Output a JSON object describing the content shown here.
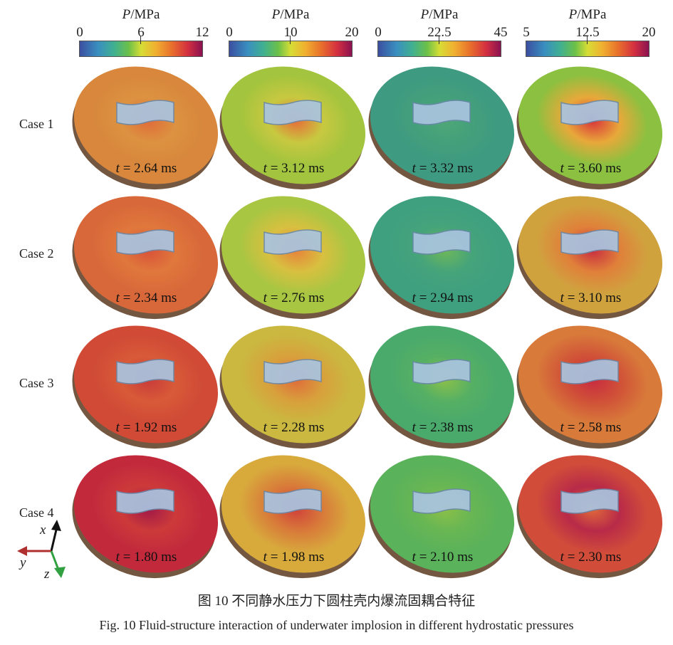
{
  "colorbars": [
    {
      "title_var": "P",
      "title_unit": "/MPa",
      "ticks": [
        "0",
        "6",
        "12"
      ]
    },
    {
      "title_var": "P",
      "title_unit": "/MPa",
      "ticks": [
        "0",
        "10",
        "20"
      ]
    },
    {
      "title_var": "P",
      "title_unit": "/MPa",
      "ticks": [
        "0",
        "22.5",
        "45"
      ]
    },
    {
      "title_var": "P",
      "title_unit": "/MPa",
      "ticks": [
        "5",
        "12.5",
        "20"
      ]
    }
  ],
  "rows": [
    {
      "label": "Case 1",
      "cells": [
        {
          "t_var": "t",
          "time": "= 2.64 ms",
          "base": "#d8873c",
          "ring": "#dc9240",
          "core": "#e06a3a"
        },
        {
          "t_var": "t",
          "time": "= 3.12 ms",
          "base": "#a3c43e",
          "ring": "#c8c840",
          "core": "#e86a38"
        },
        {
          "t_var": "t",
          "time": "= 3.32 ms",
          "base": "#3e9a80",
          "ring": "#44a07a",
          "core": "#50a878"
        },
        {
          "t_var": "t",
          "time": "= 3.60 ms",
          "base": "#8cc040",
          "ring": "#e8a83a",
          "core": "#d8303a"
        }
      ]
    },
    {
      "label": "Case 2",
      "cells": [
        {
          "t_var": "t",
          "time": "= 2.34 ms",
          "base": "#d8683a",
          "ring": "#e0783c",
          "core": "#d85038"
        },
        {
          "t_var": "t",
          "time": "= 2.76 ms",
          "base": "#a8c642",
          "ring": "#d8c040",
          "core": "#e8803a"
        },
        {
          "t_var": "t",
          "time": "= 2.94 ms",
          "base": "#3fa080",
          "ring": "#46a47a",
          "core": "#70b858"
        },
        {
          "t_var": "t",
          "time": "= 3.10 ms",
          "base": "#d0a23e",
          "ring": "#e0803a",
          "core": "#c82a40"
        }
      ]
    },
    {
      "label": "Case 3",
      "cells": [
        {
          "t_var": "t",
          "time": "= 1.92 ms",
          "base": "#d04a36",
          "ring": "#d85a38",
          "core": "#c83a3a"
        },
        {
          "t_var": "t",
          "time": "= 2.28 ms",
          "base": "#cab840",
          "ring": "#d8a03c",
          "core": "#e06a3a"
        },
        {
          "t_var": "t",
          "time": "= 2.38 ms",
          "base": "#4aaa6c",
          "ring": "#56b064",
          "core": "#8cc048"
        },
        {
          "t_var": "t",
          "time": "= 2.58 ms",
          "base": "#d87a3a",
          "ring": "#d05038",
          "core": "#c82a40"
        }
      ]
    },
    {
      "label": "Case 4",
      "cells": [
        {
          "t_var": "t",
          "time": "= 1.80 ms",
          "base": "#c22a3c",
          "ring": "#cc3a3a",
          "core": "#a01848"
        },
        {
          "t_var": "t",
          "time": "= 1.98 ms",
          "base": "#d8aa3c",
          "ring": "#d87a3a",
          "core": "#d0403a"
        },
        {
          "t_var": "t",
          "time": "= 2.10 ms",
          "base": "#5ab25a",
          "ring": "#68b654",
          "core": "#8cc048"
        },
        {
          "t_var": "t",
          "time": "= 2.30 ms",
          "base": "#d24c3a",
          "ring": "#b82a48",
          "core": "#e06a3a"
        }
      ]
    }
  ],
  "axes": {
    "x": "x",
    "y": "y",
    "z": "z",
    "x_color": "#111111",
    "y_color": "#b03030",
    "z_color": "#30a040"
  },
  "caption": {
    "zh": "图 10    不同静水压力下圆柱壳内爆流固耦合特征",
    "en": "Fig. 10    Fluid-structure interaction of underwater implosion in different hydrostatic pressures"
  }
}
